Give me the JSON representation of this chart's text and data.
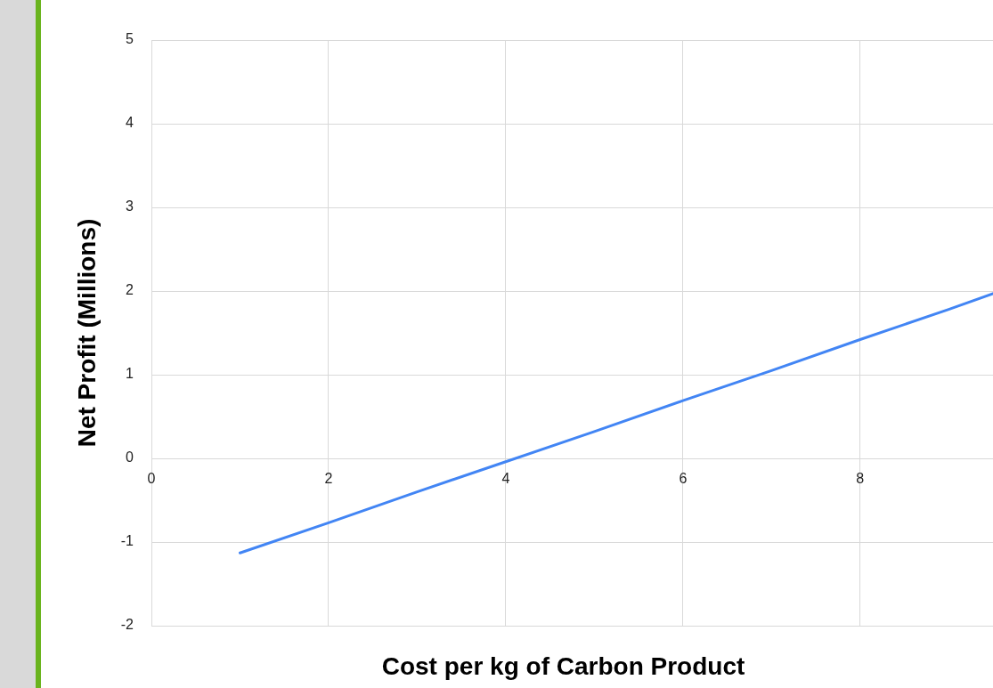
{
  "chart_data": {
    "type": "line",
    "xlabel": "Cost per kg of Carbon Product",
    "ylabel": "Net Profit (Millions)",
    "x": [
      1,
      2,
      3,
      4,
      5,
      6,
      7,
      8,
      9,
      9.5
    ],
    "series": [
      {
        "color": "#4285f4",
        "values": [
          -1.13,
          -0.77,
          -0.4,
          -0.04,
          0.32,
          0.69,
          1.05,
          1.42,
          1.78,
          1.97
        ]
      }
    ],
    "xlim": [
      0,
      9.5
    ],
    "xticks": [
      0,
      2,
      4,
      6,
      8
    ],
    "ylim": [
      -2,
      5
    ],
    "yticks": [
      -2,
      -1,
      0,
      1,
      2,
      3,
      4,
      5
    ],
    "grid": true,
    "legend": false,
    "marker": "none",
    "line_style": "solid"
  }
}
